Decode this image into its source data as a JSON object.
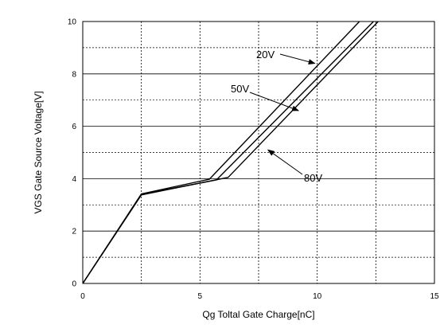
{
  "chart_data": {
    "type": "line",
    "title": "",
    "xlabel": "Qg Toltal Gate Charge[nC]",
    "ylabel": "VGS Gate Source Voltage[V]",
    "xlim": [
      0,
      15
    ],
    "ylim": [
      0,
      10
    ],
    "x_ticks": [
      "0",
      "5",
      "10",
      "15"
    ],
    "y_ticks": [
      "0",
      "2",
      "4",
      "6",
      "8",
      "10"
    ],
    "grid": {
      "major": "solid",
      "minor": "dotted",
      "x_minor_step": 2.5,
      "y_minor_step": 1
    },
    "series": [
      {
        "label": "20V",
        "x": [
          0,
          2.5,
          5.4,
          11.8
        ],
        "y": [
          0,
          3.42,
          3.98,
          10
        ]
      },
      {
        "label": "50V",
        "x": [
          0,
          2.5,
          5.7,
          12.4
        ],
        "y": [
          0,
          3.4,
          3.95,
          10
        ]
      },
      {
        "label": "80V",
        "x": [
          0,
          2.5,
          6.2,
          12.6
        ],
        "y": [
          0,
          3.38,
          4.05,
          10
        ]
      }
    ],
    "annotations": [
      {
        "text": "20V",
        "series": "20V",
        "point": [
          9.9,
          8.4
        ]
      },
      {
        "text": "50V",
        "series": "50V",
        "point": [
          9.2,
          6.6
        ]
      },
      {
        "text": "80V",
        "series": "80V",
        "point": [
          7.9,
          5.1
        ]
      }
    ],
    "colors": {
      "line": "#000000",
      "grid": "#000000",
      "background": "#ffffff"
    }
  }
}
